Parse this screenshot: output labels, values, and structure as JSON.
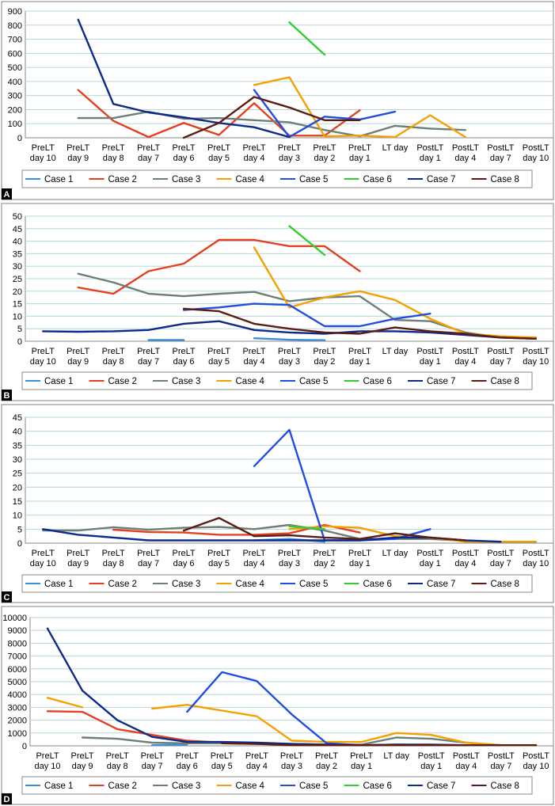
{
  "chart_data": [
    {
      "type": "line",
      "panel_label": "A",
      "categories": [
        "PreLT day 10",
        "PreLT day 9",
        "PreLT day 8",
        "PreLT day 7",
        "PreLT day 6",
        "PreLT day 5",
        "PreLT day 4",
        "PreLT day 3",
        "PreLT day 2",
        "PreLT day 1",
        "LT day",
        "PostLT day 1",
        "PostLT day 4",
        "PostLT day 7",
        "PostLT day 10"
      ],
      "ylim": [
        0,
        900
      ],
      "yticks": [
        0,
        100,
        200,
        300,
        400,
        500,
        600,
        700,
        800,
        900
      ],
      "grid": true,
      "legend_position": "bottom",
      "series": [
        {
          "name": "Case 1",
          "color": "#3b8fd6",
          "values": [
            null,
            null,
            null,
            null,
            null,
            null,
            null,
            null,
            null,
            null,
            null,
            null,
            null,
            null,
            null
          ]
        },
        {
          "name": "Case 2",
          "color": "#e2401f",
          "values": [
            null,
            340,
            120,
            5,
            105,
            20,
            245,
            15,
            15,
            195,
            null,
            null,
            null,
            null,
            null
          ]
        },
        {
          "name": "Case 3",
          "color": "#6e7f78",
          "values": [
            null,
            140,
            140,
            185,
            135,
            140,
            125,
            110,
            55,
            10,
            85,
            65,
            55,
            null,
            null
          ]
        },
        {
          "name": "Case 4",
          "color": "#f5a000",
          "values": [
            null,
            null,
            null,
            null,
            null,
            null,
            375,
            430,
            10,
            15,
            5,
            160,
            5,
            null,
            null
          ]
        },
        {
          "name": "Case 5",
          "color": "#1f4fe0",
          "values": [
            null,
            null,
            null,
            null,
            null,
            null,
            340,
            5,
            150,
            130,
            185,
            null,
            null,
            null,
            null
          ]
        },
        {
          "name": "Case 6",
          "color": "#33cc33",
          "values": [
            null,
            null,
            null,
            null,
            null,
            null,
            null,
            820,
            590,
            null,
            null,
            null,
            null,
            null,
            null
          ]
        },
        {
          "name": "Case 7",
          "color": "#0d2a8a",
          "values": [
            null,
            840,
            240,
            180,
            145,
            105,
            75,
            5,
            null,
            null,
            null,
            null,
            null,
            null,
            null
          ]
        },
        {
          "name": "Case 8",
          "color": "#5a1d14",
          "values": [
            null,
            null,
            null,
            null,
            0,
            105,
            290,
            215,
            125,
            125,
            null,
            null,
            null,
            null,
            null
          ]
        }
      ]
    },
    {
      "type": "line",
      "panel_label": "B",
      "categories": [
        "PreLT day 10",
        "PreLT day 9",
        "PreLT day 8",
        "PreLT day 7",
        "PreLT day 6",
        "PreLT day 5",
        "PreLT day 4",
        "PreLT day 3",
        "PreLT day 2",
        "PreLT day 1",
        "LT day",
        "PostLT day 1",
        "PostLT day 4",
        "PostLT day 7",
        "PostLT day 10"
      ],
      "ylim": [
        0,
        50
      ],
      "yticks": [
        0,
        5,
        10,
        15,
        20,
        25,
        30,
        35,
        40,
        45,
        50
      ],
      "grid": true,
      "legend_position": "bottom",
      "series": [
        {
          "name": "Case 1",
          "color": "#3b8fd6",
          "values": [
            null,
            null,
            null,
            0.5,
            0.5,
            null,
            1.2,
            0.6,
            0.4,
            null,
            null,
            null,
            null,
            null,
            null
          ]
        },
        {
          "name": "Case 2",
          "color": "#e2401f",
          "values": [
            null,
            21.5,
            19,
            28,
            31,
            40.5,
            40.5,
            38,
            38,
            28,
            null,
            null,
            null,
            null,
            null
          ]
        },
        {
          "name": "Case 3",
          "color": "#6e7f78",
          "values": [
            null,
            27,
            23.5,
            19,
            18,
            19,
            19.7,
            16,
            17.5,
            18,
            8.5,
            8,
            3.5,
            1.5,
            1.5
          ]
        },
        {
          "name": "Case 4",
          "color": "#f5a000",
          "values": [
            null,
            null,
            null,
            null,
            null,
            null,
            37.5,
            13.5,
            17.5,
            20,
            16.5,
            9,
            3,
            2,
            1.5
          ]
        },
        {
          "name": "Case 5",
          "color": "#1f4fe0",
          "values": [
            null,
            null,
            null,
            null,
            12.5,
            13.5,
            15,
            14.5,
            6,
            6,
            9,
            11,
            null,
            null,
            null
          ]
        },
        {
          "name": "Case 6",
          "color": "#33cc33",
          "values": [
            null,
            null,
            null,
            null,
            null,
            null,
            null,
            46,
            34.5,
            null,
            null,
            null,
            null,
            null,
            null
          ]
        },
        {
          "name": "Case 7",
          "color": "#0d2a8a",
          "values": [
            4,
            3.8,
            4,
            4.5,
            7,
            8,
            4.5,
            3.5,
            3,
            4,
            4,
            3.5,
            2.5,
            1.5,
            1
          ]
        },
        {
          "name": "Case 8",
          "color": "#5a1d14",
          "values": [
            null,
            null,
            null,
            null,
            13,
            12,
            7,
            5,
            3.5,
            3,
            5.5,
            4,
            3,
            1.5,
            1
          ]
        }
      ]
    },
    {
      "type": "line",
      "panel_label": "C",
      "categories": [
        "PreLT day 10",
        "PreLT day 9",
        "PreLT day 8",
        "PreLT day 7",
        "PreLT day 6",
        "PreLT day 5",
        "PreLT day 4",
        "PreLT day 3",
        "PreLT day 2",
        "PreLT day 1",
        "LT day",
        "PostLT day 1",
        "PostLT day 4",
        "PostLT day 7",
        "PostLT day 10"
      ],
      "ylim": [
        0,
        45
      ],
      "yticks": [
        0,
        5,
        10,
        15,
        20,
        25,
        30,
        35,
        40,
        45
      ],
      "grid": true,
      "legend_position": "bottom",
      "series": [
        {
          "name": "Case 1",
          "color": "#3b8fd6",
          "values": [
            null,
            null,
            null,
            null,
            null,
            null,
            1,
            1.5,
            0.5,
            null,
            null,
            null,
            null,
            null,
            null
          ]
        },
        {
          "name": "Case 2",
          "color": "#e2401f",
          "values": [
            null,
            null,
            4.8,
            4,
            3.8,
            3,
            3,
            3.5,
            6.5,
            3.8,
            null,
            null,
            null,
            null,
            null
          ]
        },
        {
          "name": "Case 3",
          "color": "#6e7f78",
          "values": [
            4.5,
            4.5,
            5.7,
            4.8,
            5.5,
            5.8,
            5,
            6.5,
            4.5,
            1.5,
            1.5,
            1.5,
            0.8,
            0.5,
            0.5
          ]
        },
        {
          "name": "Case 4",
          "color": "#f5a000",
          "values": [
            null,
            null,
            null,
            null,
            null,
            null,
            null,
            5,
            6,
            5.5,
            2.5,
            2,
            0.5,
            0.5,
            0.5
          ]
        },
        {
          "name": "Case 5",
          "color": "#1f4fe0",
          "values": [
            null,
            null,
            null,
            null,
            null,
            null,
            27.5,
            40.5,
            1,
            1,
            1.5,
            5,
            null,
            null,
            null
          ]
        },
        {
          "name": "Case 6",
          "color": "#33cc33",
          "values": [
            null,
            null,
            null,
            null,
            null,
            null,
            null,
            6,
            5,
            null,
            null,
            null,
            null,
            null,
            null
          ]
        },
        {
          "name": "Case 7",
          "color": "#0d2a8a",
          "values": [
            5,
            3,
            2,
            1,
            1,
            1,
            1,
            1,
            1,
            1,
            2,
            2,
            1,
            0.5,
            null
          ]
        },
        {
          "name": "Case 8",
          "color": "#5a1d14",
          "values": [
            null,
            null,
            null,
            null,
            4.5,
            9,
            2.5,
            2.8,
            2,
            1.5,
            3.5,
            2,
            1,
            null,
            null
          ]
        }
      ]
    },
    {
      "type": "line",
      "panel_label": "D",
      "categories": [
        "PreLT day 10",
        "PreLT day 9",
        "PreLT day 8",
        "PreLT day 7",
        "PreLT day 6",
        "PreLT day 5",
        "PreLT day 4",
        "PreLT day 3",
        "PreLT day 2",
        "PreLT day 1",
        "LT day",
        "PostLT day 1",
        "PostLT day 4",
        "PostLT day 7",
        "PostLT day 10"
      ],
      "ylim": [
        0,
        10000
      ],
      "yticks": [
        0,
        1000,
        2000,
        3000,
        4000,
        5000,
        6000,
        7000,
        8000,
        9000,
        10000
      ],
      "grid": true,
      "legend_position": "bottom",
      "series": [
        {
          "name": "Case 1",
          "color": "#3b8fd6",
          "values": [
            null,
            null,
            null,
            50,
            100,
            null,
            null,
            null,
            null,
            null,
            null,
            null,
            null,
            null,
            null
          ]
        },
        {
          "name": "Case 2",
          "color": "#e2401f",
          "values": [
            2700,
            2650,
            1300,
            850,
            400,
            250,
            200,
            100,
            50,
            50,
            null,
            null,
            null,
            null,
            null
          ]
        },
        {
          "name": "Case 3",
          "color": "#6e7f78",
          "values": [
            null,
            650,
            550,
            250,
            200,
            200,
            150,
            150,
            100,
            100,
            650,
            550,
            250,
            50,
            50
          ]
        },
        {
          "name": "Case 4",
          "color": "#f5a000",
          "values": [
            3750,
            3000,
            null,
            2900,
            3200,
            2750,
            2300,
            400,
            300,
            300,
            1000,
            850,
            250,
            50,
            50
          ]
        },
        {
          "name": "Case 5",
          "color": "#1f4fe0",
          "values": [
            null,
            null,
            null,
            null,
            2650,
            5750,
            5050,
            2450,
            200,
            50,
            100,
            50,
            null,
            null,
            null
          ]
        },
        {
          "name": "Case 6",
          "color": "#33cc33",
          "values": [
            null,
            null,
            null,
            null,
            null,
            null,
            null,
            null,
            null,
            null,
            null,
            null,
            null,
            null,
            null
          ]
        },
        {
          "name": "Case 7",
          "color": "#0d2a8a",
          "values": [
            9150,
            4300,
            2000,
            700,
            300,
            300,
            250,
            150,
            100,
            50,
            100,
            100,
            50,
            null,
            null
          ]
        },
        {
          "name": "Case 8",
          "color": "#5a1d14",
          "values": [
            null,
            null,
            null,
            null,
            null,
            200,
            150,
            50,
            50,
            50,
            50,
            50,
            50,
            50,
            50
          ]
        }
      ]
    }
  ]
}
